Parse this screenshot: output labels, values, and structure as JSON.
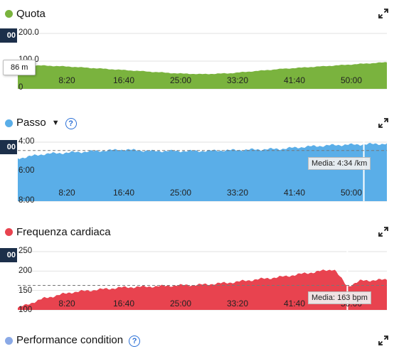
{
  "icons": {
    "expand": "expand-arrows-icon",
    "help": "question-circle-icon",
    "dropdown": "caret-down-icon"
  },
  "time_labels": [
    "8:20",
    "16:40",
    "25:00",
    "33:20",
    "41:40",
    "50:00"
  ],
  "sections": [
    {
      "title": "Quota",
      "color": "#7ab33e",
      "left_badge": "00",
      "tooltip": "86 m",
      "y_labels": [
        "200.0",
        "100.0",
        "0"
      ],
      "chart_data": {
        "type": "area",
        "title": "Quota",
        "x_unit": "min",
        "x": [
          0,
          4,
          8,
          12,
          16,
          20,
          24,
          28,
          32,
          36,
          40,
          44,
          48,
          52,
          56
        ],
        "values": [
          86,
          84,
          80,
          74,
          68,
          62,
          56,
          53,
          56,
          64,
          72,
          78,
          84,
          90,
          96
        ],
        "ylim": [
          0,
          200
        ],
        "xlim": [
          0,
          56
        ]
      }
    },
    {
      "title": "Passo",
      "color": "#5aaee8",
      "left_badge": "00",
      "average_label": "Media: 4:34 /km",
      "y_labels": [
        "4:00",
        "6:00",
        "8:00"
      ],
      "chart_data": {
        "type": "area",
        "title": "Passo",
        "x_unit": "min",
        "y_unit": "min/km",
        "x": [
          0,
          4,
          8,
          12,
          16,
          20,
          24,
          28,
          32,
          36,
          40,
          44,
          48,
          52,
          56
        ],
        "values": [
          5.1,
          4.8,
          4.7,
          4.6,
          4.5,
          4.6,
          4.6,
          4.6,
          4.55,
          4.5,
          4.45,
          4.3,
          4.2,
          4.15,
          4.1
        ],
        "ylim": [
          4.0,
          8.0
        ],
        "inverted": true,
        "average": 4.567,
        "xlim": [
          0,
          56
        ]
      }
    },
    {
      "title": "Frequenza cardiaca",
      "color": "#e8434f",
      "left_badge": "00",
      "average_label": "Media: 163 bpm",
      "y_labels": [
        "250",
        "200",
        "150",
        "100"
      ],
      "chart_data": {
        "type": "area",
        "title": "Frequenza cardiaca",
        "x_unit": "min",
        "y_unit": "bpm",
        "x": [
          0,
          4,
          8,
          12,
          16,
          20,
          24,
          28,
          32,
          36,
          40,
          44,
          48,
          50,
          52,
          56
        ],
        "values": [
          105,
          130,
          145,
          152,
          158,
          160,
          163,
          165,
          170,
          178,
          185,
          195,
          205,
          160,
          175,
          178
        ],
        "ylim": [
          100,
          250
        ],
        "average": 163,
        "xlim": [
          0,
          56
        ]
      }
    },
    {
      "title": "Performance condition",
      "color": "#8aa9e6"
    }
  ]
}
